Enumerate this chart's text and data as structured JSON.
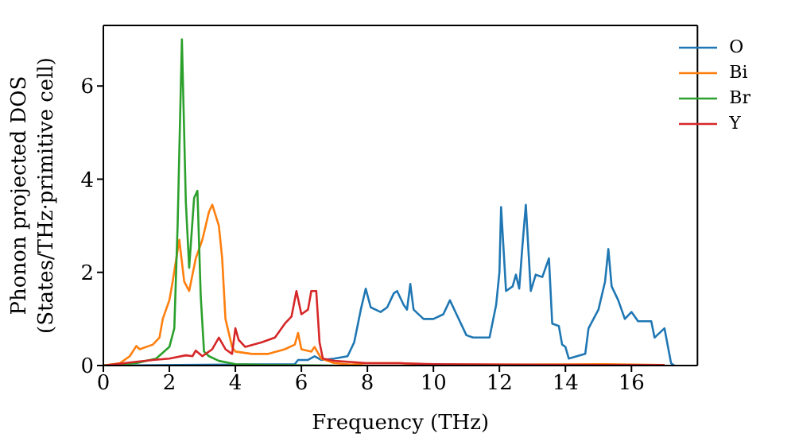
{
  "chart_data": {
    "type": "line",
    "xlabel": "Frequency (THz)",
    "ylabel": "Phonon projected DOS\n(States/THz·primitive cell)",
    "xlim": [
      0,
      18
    ],
    "xticks": [
      0,
      2,
      4,
      6,
      8,
      10,
      12,
      14,
      16
    ],
    "ylim": [
      0,
      7.3
    ],
    "yticks": [
      0,
      2,
      4,
      6
    ],
    "grid": false,
    "legend": "top right",
    "marker": "none",
    "line_style": "solid",
    "series": [
      {
        "name": "O",
        "color": "#1f77b4",
        "x": [
          0,
          4,
          5.8,
          5.9,
          6.2,
          6.4,
          6.6,
          7,
          7.4,
          7.6,
          7.8,
          7.95,
          8.1,
          8.4,
          8.6,
          8.8,
          8.9,
          9.1,
          9.2,
          9.3,
          9.4,
          9.7,
          10,
          10.3,
          10.5,
          10.7,
          11,
          11.2,
          11.7,
          11.9,
          12,
          12.05,
          12.2,
          12.4,
          12.5,
          12.6,
          12.7,
          12.8,
          12.95,
          13.1,
          13.3,
          13.5,
          13.6,
          13.8,
          13.9,
          14,
          14.1,
          14.6,
          14.7,
          15,
          15.2,
          15.3,
          15.4,
          15.6,
          15.8,
          16,
          16.2,
          16.6,
          16.7,
          17,
          17.2,
          17.3
        ],
        "values": [
          0,
          0.02,
          0.03,
          0.12,
          0.12,
          0.2,
          0.12,
          0.15,
          0.2,
          0.5,
          1.2,
          1.65,
          1.25,
          1.15,
          1.25,
          1.55,
          1.6,
          1.3,
          1.2,
          1.75,
          1.2,
          1,
          1,
          1.1,
          1.4,
          1.1,
          0.65,
          0.6,
          0.6,
          1.3,
          2,
          3.4,
          1.6,
          1.7,
          1.95,
          1.65,
          2.6,
          3.45,
          1.6,
          1.95,
          1.9,
          2.3,
          0.9,
          0.85,
          0.45,
          0.4,
          0.15,
          0.25,
          0.8,
          1.2,
          1.8,
          2.5,
          1.7,
          1.4,
          1,
          1.15,
          0.95,
          0.95,
          0.6,
          0.8,
          0.05,
          0
        ]
      },
      {
        "name": "Bi",
        "color": "#ff7f0e",
        "x": [
          0,
          0.5,
          0.8,
          1,
          1.1,
          1.5,
          1.7,
          1.8,
          2,
          2.1,
          2.3,
          2.45,
          2.6,
          2.8,
          3,
          3.2,
          3.3,
          3.5,
          3.6,
          3.7,
          3.9,
          4,
          4.5,
          5,
          5.5,
          5.8,
          5.9,
          6,
          6.3,
          6.4,
          6.6,
          7,
          7.5,
          8,
          9,
          10,
          11,
          12,
          13,
          15,
          17
        ],
        "values": [
          0,
          0.05,
          0.2,
          0.42,
          0.35,
          0.45,
          0.6,
          1,
          1.4,
          1.8,
          2.7,
          1.8,
          1.6,
          2.3,
          2.7,
          3.3,
          3.45,
          3,
          2.3,
          1,
          0.4,
          0.3,
          0.25,
          0.25,
          0.35,
          0.45,
          0.7,
          0.35,
          0.3,
          0.4,
          0.15,
          0.05,
          0.02,
          0.05,
          0.05,
          0.02,
          0.02,
          0.02,
          0.02,
          0.03,
          0.01
        ]
      },
      {
        "name": "Br",
        "color": "#2ca02c",
        "x": [
          0,
          1,
          1.6,
          2,
          2.15,
          2.25,
          2.38,
          2.5,
          2.6,
          2.75,
          2.85,
          2.95,
          3.05,
          3.2,
          3.5,
          4,
          5,
          7
        ],
        "values": [
          0,
          0.05,
          0.15,
          0.4,
          0.8,
          3,
          7,
          3.5,
          2.1,
          3.6,
          3.75,
          1.5,
          0.3,
          0.2,
          0.1,
          0.03,
          0.01,
          0
        ]
      },
      {
        "name": "Y",
        "color": "#d62728",
        "x": [
          0,
          1,
          1.5,
          2,
          2.5,
          2.7,
          2.8,
          3,
          3.3,
          3.5,
          3.7,
          3.9,
          4,
          4.1,
          4.3,
          4.8,
          5.2,
          5.5,
          5.7,
          5.85,
          6,
          6.2,
          6.3,
          6.45,
          6.55,
          6.65,
          7,
          8,
          9,
          10,
          12,
          17
        ],
        "values": [
          0,
          0.08,
          0.12,
          0.15,
          0.22,
          0.2,
          0.32,
          0.2,
          0.35,
          0.6,
          0.35,
          0.25,
          0.8,
          0.55,
          0.4,
          0.5,
          0.6,
          0.9,
          1.05,
          1.6,
          1.1,
          1.2,
          1.6,
          1.6,
          0.5,
          0.15,
          0.1,
          0.05,
          0.05,
          0.03,
          0.02,
          0.01
        ]
      }
    ]
  }
}
